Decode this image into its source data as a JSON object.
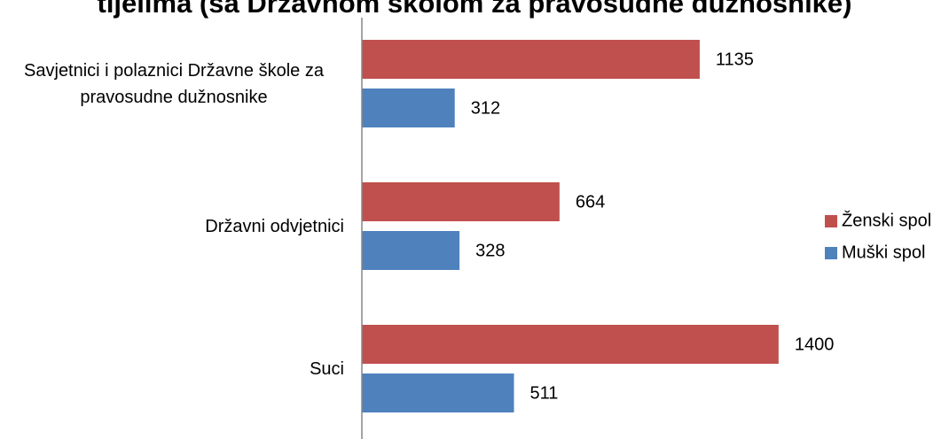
{
  "chart_data": {
    "type": "hbar",
    "title": "tijelima (sa Državnom školom za pravosudne dužnosnike)",
    "categories": [
      "Savjetnici i polaznici Državne škole za pravosudne dužnosnike",
      "Državni odvjetnici",
      "Suci"
    ],
    "series": [
      {
        "name": "Ženski spol",
        "color": "#c0504d",
        "values": [
          1135,
          664,
          1400
        ]
      },
      {
        "name": "Muški spol",
        "color": "#4f81bd",
        "values": [
          312,
          328,
          511
        ]
      }
    ],
    "xlim": [
      0,
      1600
    ],
    "legend": "right"
  }
}
